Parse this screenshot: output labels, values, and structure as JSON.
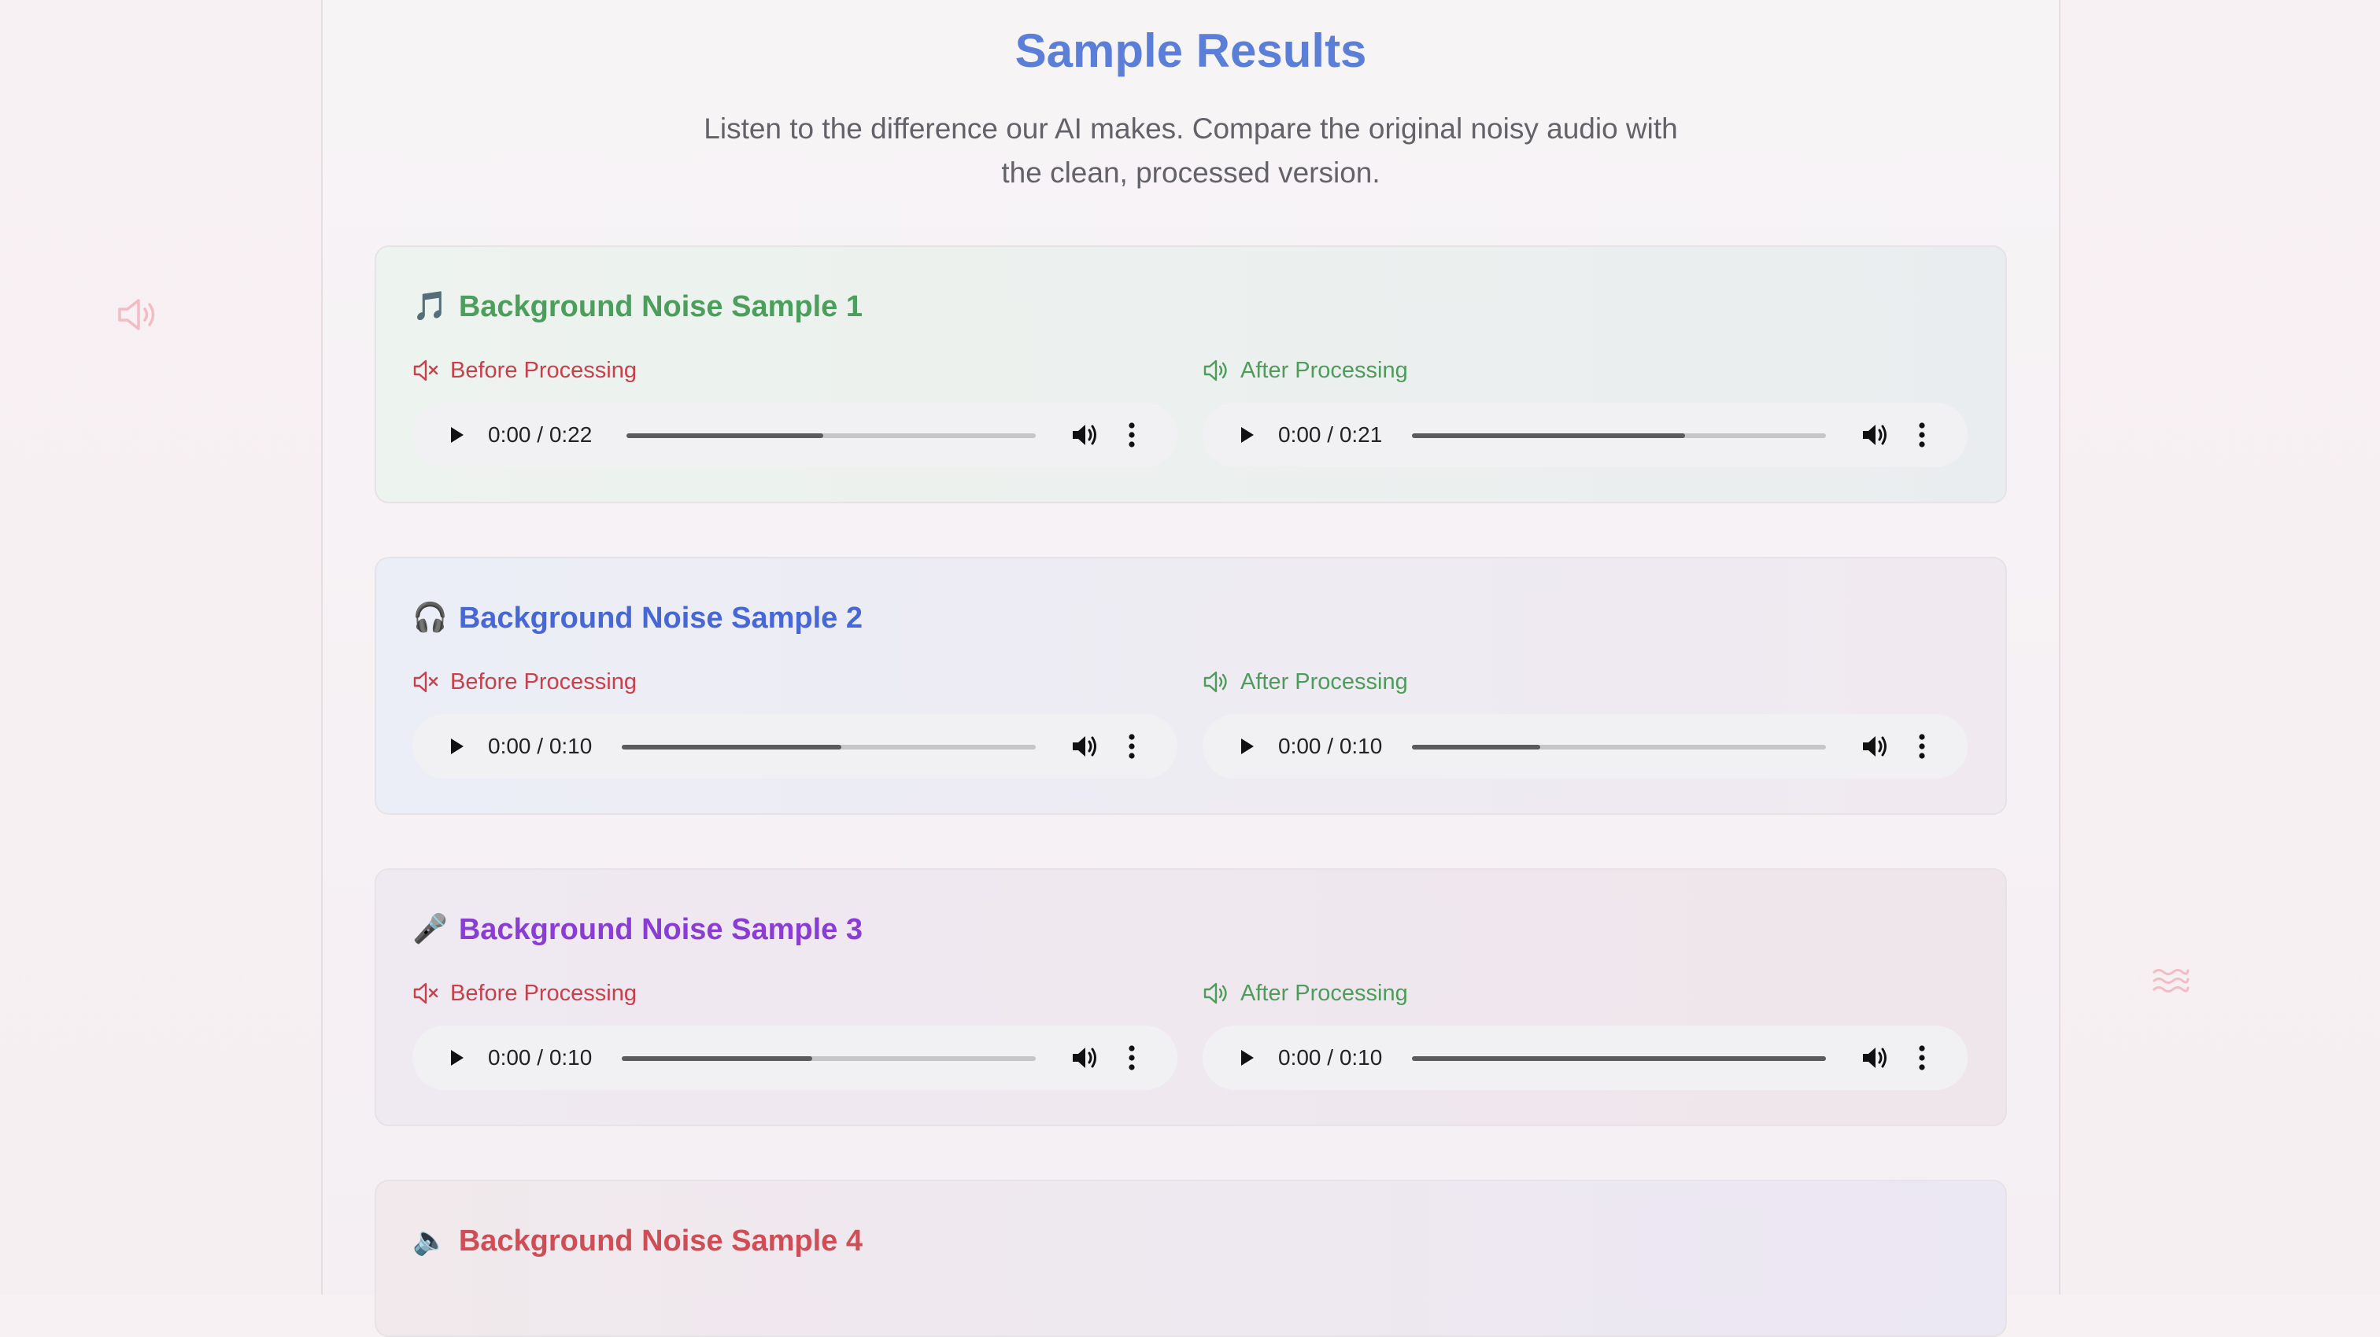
{
  "page": {
    "title": "Sample Results",
    "subtitle_line1": "Listen to the difference our AI makes. Compare the original noisy audio with",
    "subtitle_line2": "the clean, processed version."
  },
  "labels": {
    "before": "Before Processing",
    "after": "After Processing"
  },
  "samples": [
    {
      "emoji": "🎵",
      "title": "Background Noise Sample 1",
      "title_color": "#4b9e5b",
      "before": {
        "time": "0:00 / 0:22",
        "progress_fraction": 0.48
      },
      "after": {
        "time": "0:00 / 0:21",
        "progress_fraction": 0.66
      }
    },
    {
      "emoji": "🎧",
      "title": "Background Noise Sample 2",
      "title_color": "#4767d6",
      "before": {
        "time": "0:00 / 0:10",
        "progress_fraction": 0.53
      },
      "after": {
        "time": "0:00 / 0:10",
        "progress_fraction": 0.31
      }
    },
    {
      "emoji": "🎤",
      "title": "Background Noise Sample 3",
      "title_color": "#8a3dd4",
      "before": {
        "time": "0:00 / 0:10",
        "progress_fraction": 0.46
      },
      "after": {
        "time": "0:00 / 0:10",
        "progress_fraction": 1.0
      }
    },
    {
      "emoji": "🔈",
      "title": "Background Noise Sample 4",
      "title_color": "#cf4e55"
    }
  ],
  "icons": {
    "before_label": "speaker-muted-icon",
    "after_label": "speaker-on-icon",
    "play": "play-icon",
    "volume": "volume-icon",
    "menu": "more-vertical-icon",
    "deco_left": "speaker-icon",
    "deco_right": "sound-waves-icon"
  }
}
